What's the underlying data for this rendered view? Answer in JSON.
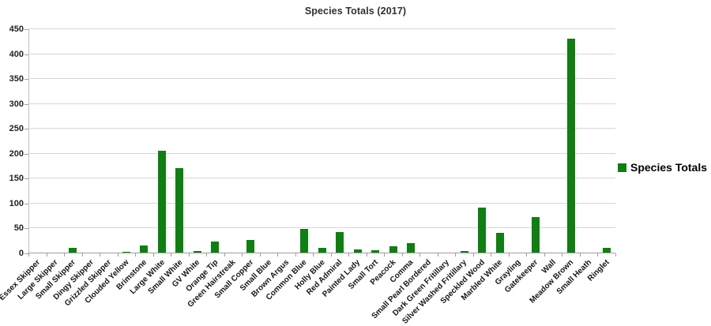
{
  "title": "Species Totals (2017)",
  "legend": {
    "label": "Species Totals"
  },
  "colors": {
    "bar": "#0e7f11",
    "gridline": "#d6d6d6",
    "axis": "#9e9e9e"
  },
  "chart_data": {
    "type": "bar",
    "title": "Species Totals (2017)",
    "categories": [
      "Essex Skipper",
      "Large Skipper",
      "Small Skipper",
      "Dingy Skipper",
      "Grizzled Skipper",
      "Clouded Yellow",
      "Brimstone",
      "Large White",
      "Small White",
      "GV White",
      "Orange Tip",
      "Green Hairstreak",
      "Small Copper",
      "Small Blue",
      "Brown Argus",
      "Common Blue",
      "Holly Blue",
      "Red Admiral",
      "Painted Lady",
      "Small Tort",
      "Peacock",
      "Comma",
      "Small Pearl Bordered",
      "Dark Green Fritillary",
      "Silver Washed Fritillary",
      "Speckled Wood",
      "Marbled White",
      "Grayling",
      "Gatekeeper",
      "Wall",
      "Meadow Brown",
      "Small Heath",
      "Ringlet"
    ],
    "series": [
      {
        "name": "Species Totals",
        "values": [
          0,
          0,
          10,
          0,
          0,
          2,
          14,
          205,
          170,
          3,
          22,
          0,
          25,
          0,
          0,
          48,
          10,
          41,
          6,
          4,
          12,
          19,
          0,
          0,
          3,
          90,
          40,
          0,
          72,
          0,
          430,
          0,
          10
        ]
      }
    ],
    "xlabel": "",
    "ylabel": "",
    "ylim": [
      0,
      450
    ],
    "yticks": [
      0,
      50,
      100,
      150,
      200,
      250,
      300,
      350,
      400,
      450
    ],
    "grid": true,
    "legend_position": "right",
    "bar_color": "#0e7f11"
  }
}
